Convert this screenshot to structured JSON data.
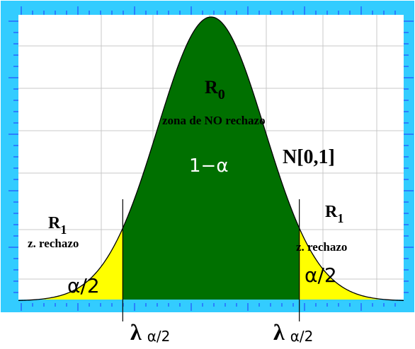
{
  "colors": {
    "frame": "#33ccff",
    "tick": "#2233ff",
    "plot_bg": "#ffffff",
    "grid": "#c8c8c8",
    "central_fill": "#007000",
    "tail_fill": "#ffff00",
    "curve": "#000000",
    "baseline": "#33ccff"
  },
  "labels": {
    "r0_main": "R",
    "r0_sub": "0",
    "central_zone": "zona de NO rechazo",
    "one_minus_alpha": "1−α",
    "distribution": "N[0,1]",
    "r1_left_main": "R",
    "r1_left_sub": "1",
    "r1_right_main": "R",
    "r1_right_sub": "1",
    "rejection_left": "z. rechazo",
    "rejection_right": "z. rechazo",
    "alpha_half_left": "α/2",
    "alpha_half_right": "α/2",
    "lambda_left_symbol": "λ",
    "lambda_left_sub": "α/2",
    "lambda_right_symbol": "λ",
    "lambda_right_sub": "α/2"
  },
  "distribution": {
    "type": "normal",
    "mean": 0,
    "sd": 1,
    "x_range": [
      -3.6,
      3.6
    ],
    "critical_values": [
      -1.65,
      1.65
    ]
  }
}
